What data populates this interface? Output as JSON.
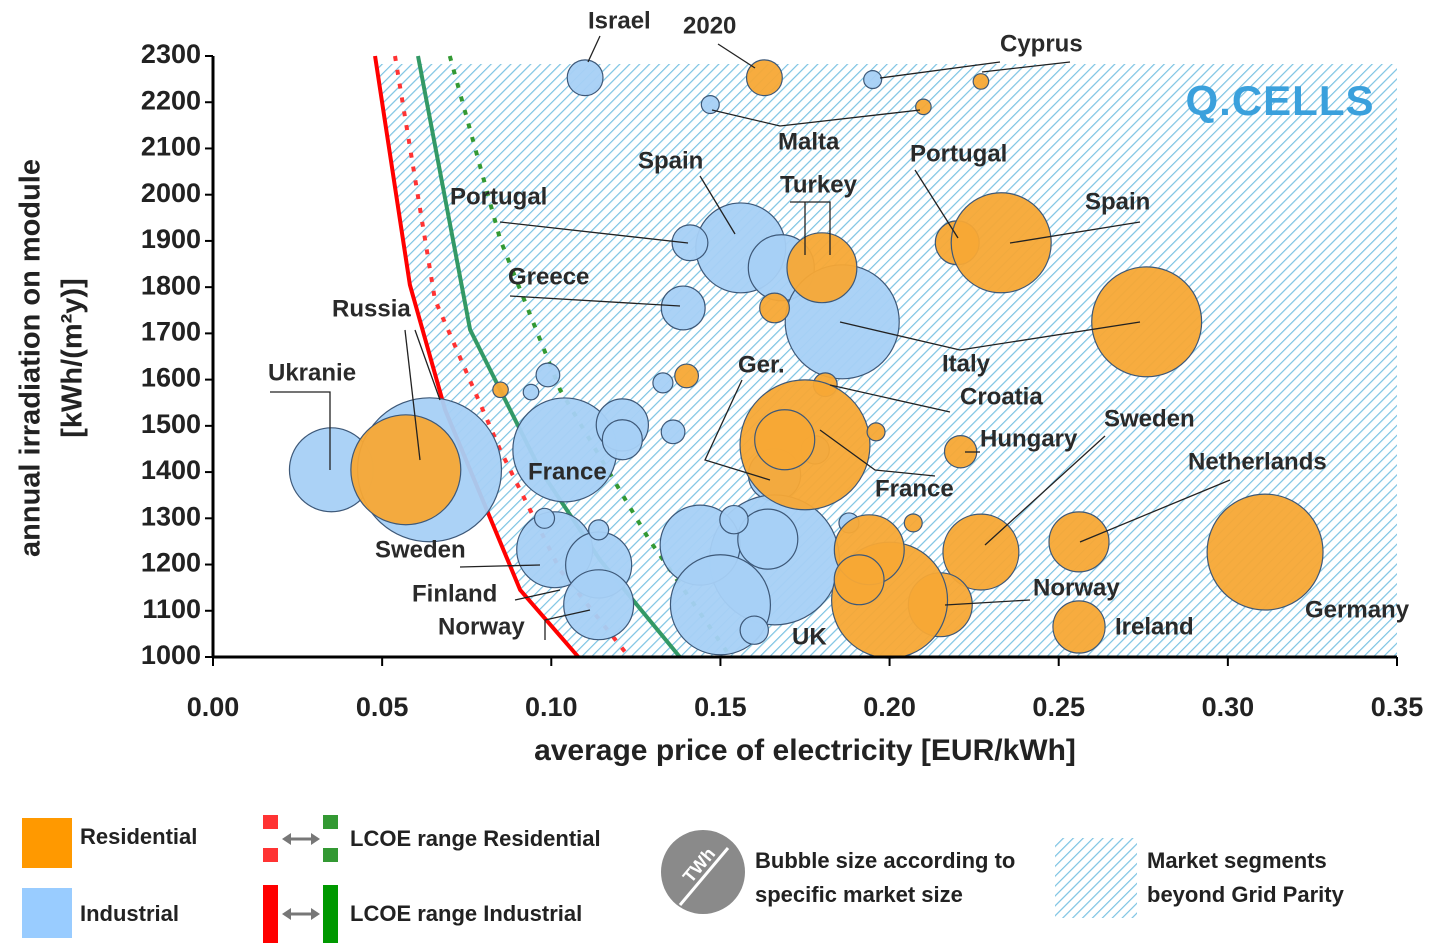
{
  "chart_data": {
    "type": "bubble",
    "xlabel": "average price of electricity [EUR/kWh]",
    "ylabel": [
      "annual irradiation on module",
      "[kWh/(m²y)]"
    ],
    "logo": "Q.CELLS",
    "xlim": [
      0,
      0.35
    ],
    "ylim": [
      1000,
      2300
    ],
    "xticks": [
      {
        "value": 0,
        "label": "0.00"
      },
      0.05,
      {
        "value": 0.1,
        "label": "0.10"
      },
      0.15,
      {
        "value": 0.2,
        "label": "0.20"
      },
      0.25,
      {
        "value": 0.3,
        "label": "0.30"
      },
      0.35
    ],
    "yticks": [
      1000,
      1100,
      1200,
      1300,
      1400,
      1500,
      1600,
      1700,
      1800,
      1900,
      2000,
      2100,
      2200,
      2300
    ],
    "series": [
      {
        "name": "Residential",
        "color": "#f7a835",
        "legend_color": "#ff9900",
        "x": [
          0.163,
          0.227,
          0.21,
          0.22,
          0.233,
          0.18,
          0.276,
          0.166,
          0.14,
          0.085,
          0.057,
          0.181,
          0.175,
          0.169,
          0.196,
          0.221,
          0.227,
          0.256,
          0.311,
          0.256,
          0.215,
          0.2,
          0.194,
          0.191,
          0.207
        ],
        "y": [
          2253,
          2245,
          2190,
          1896,
          1896,
          1842,
          1725,
          1755,
          1608,
          1578,
          1405,
          1589,
          1459,
          1470,
          1487,
          1444,
          1227,
          1249,
          1227,
          1065,
          1113,
          1123,
          1232,
          1167,
          1290
        ],
        "sizes": [
          3.2,
          0.6,
          0.6,
          4.8,
          25,
          12.2,
          30.2,
          2.2,
          1.4,
          0.6,
          30.2,
          1.4,
          42.2,
          9,
          0.8,
          2.6,
          14.4,
          9,
          33.6,
          6.8,
          10.2,
          33.6,
          12.2,
          6.2,
          0.8
        ]
      },
      {
        "name": "Industrial",
        "color": "#a6d0f5",
        "legend_color": "#99ccff",
        "x": [
          0.11,
          0.195,
          0.147,
          0.156,
          0.141,
          0.168,
          0.186,
          0.139,
          0.133,
          0.099,
          0.094,
          0.035,
          0.064,
          0.104,
          0.121,
          0.121,
          0.136,
          0.166,
          0.178,
          0.101,
          0.114,
          0.114,
          0.098,
          0.114,
          0.166,
          0.144,
          0.15,
          0.164,
          0.154,
          0.16,
          0.188
        ],
        "y": [
          2253,
          2249,
          2195,
          1885,
          1896,
          1842,
          1725,
          1755,
          1593,
          1610,
          1573,
          1405,
          1405,
          1448,
          1502,
          1470,
          1487,
          1394,
          1448,
          1232,
          1199,
          1113,
          1300,
          1275,
          1210,
          1242,
          1113,
          1255,
          1297,
          1058,
          1290
        ],
        "sizes": [
          3.2,
          0.8,
          0.8,
          20.2,
          3.2,
          10.9,
          32.5,
          4.8,
          1,
          1.4,
          0.6,
          17.6,
          51.8,
          27,
          6.8,
          4,
          1.4,
          6.8,
          2,
          14.4,
          10.9,
          12.2,
          1,
          1,
          42.2,
          16,
          25,
          9,
          2,
          2,
          1
        ]
      }
    ],
    "lcoe": [
      {
        "name": "LCOE range Residential",
        "style": "dashed",
        "lines": [
          {
            "color": "#ff3333",
            "x": [
              0.0538,
              0.0656,
              0.0849,
              0.1026,
              0.123
            ],
            "y": [
              2300,
              1773,
              1448,
              1188,
              1000
            ]
          },
          {
            "color": "#339933",
            "x": [
              0.07,
              0.0849,
              0.1026,
              0.129,
              0.153
            ],
            "y": [
              2300,
              1903,
              1578,
              1253,
              1000
            ]
          }
        ]
      },
      {
        "name": "LCOE range Industrial",
        "style": "solid",
        "lines": [
          {
            "color": "#ff0000",
            "x": [
              0.0479,
              0.0582,
              0.0686,
              0.0908,
              0.108
            ],
            "y": [
              2300,
              1805,
              1535,
              1145,
              1000
            ]
          },
          {
            "color": "#339966",
            "x": [
              0.0606,
              0.076,
              0.0967,
              0.1144,
              0.138
            ],
            "y": [
              2300,
              1708,
              1405,
              1210,
              1000
            ]
          }
        ]
      }
    ],
    "annotations": [
      "Israel",
      "2020",
      "Cyprus",
      "Malta",
      "Portugal",
      "Spain",
      "Turkey",
      "Portugal",
      "Spain",
      "Greece",
      "Italy",
      "Ger.",
      "Croatia",
      "Russia",
      "Ukranie",
      "Hungary",
      "Sweden",
      "Netherlands",
      "France",
      "France",
      "Sweden",
      "Norway",
      "Finland",
      "Germany",
      "Ireland",
      "Norway",
      "UK"
    ],
    "legend": {
      "bubble_icon": "TWh",
      "bubble_text": [
        "Bubble size according to",
        "specific market size"
      ],
      "hatch_text": [
        "Market segments",
        "beyond Grid Parity"
      ]
    }
  }
}
